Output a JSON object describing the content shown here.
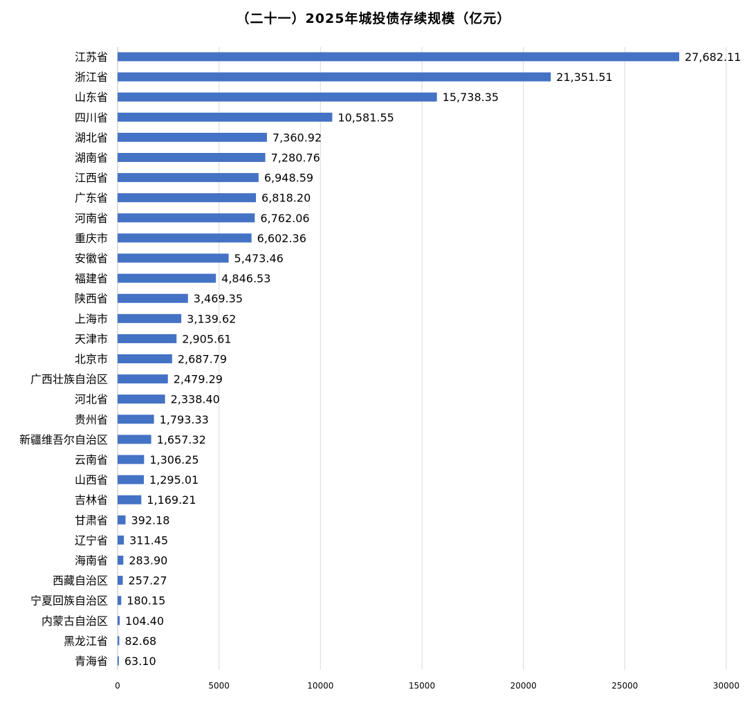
{
  "chart_data": {
    "type": "bar",
    "orientation": "horizontal",
    "title": "（二十一）2025年城投债存续规模（亿元）",
    "xlabel": "",
    "ylabel": "",
    "xlim": [
      0,
      30000
    ],
    "x_ticks": [
      "0",
      "5000",
      "10000",
      "15000",
      "20000",
      "25000",
      "30000"
    ],
    "grid": true,
    "legend": "none",
    "bar_color": "#4472C4",
    "categories": [
      "江苏省",
      "浙江省",
      "山东省",
      "四川省",
      "湖北省",
      "湖南省",
      "江西省",
      "广东省",
      "河南省",
      "重庆市",
      "安徽省",
      "福建省",
      "陕西省",
      "上海市",
      "天津市",
      "北京市",
      "广西壮族自治区",
      "河北省",
      "贵州省",
      "新疆维吾尔自治区",
      "云南省",
      "山西省",
      "吉林省",
      "甘肃省",
      "辽宁省",
      "海南省",
      "西藏自治区",
      "宁夏回族自治区",
      "内蒙古自治区",
      "黑龙江省",
      "青海省"
    ],
    "values": [
      27682.11,
      21351.51,
      15738.35,
      10581.55,
      7360.92,
      7280.76,
      6948.59,
      6818.2,
      6762.06,
      6602.36,
      5473.46,
      4846.53,
      3469.35,
      3139.62,
      2905.61,
      2687.79,
      2479.29,
      2338.4,
      1793.33,
      1657.32,
      1306.25,
      1295.01,
      1169.21,
      392.18,
      311.45,
      283.9,
      257.27,
      180.15,
      104.4,
      82.68,
      63.1
    ],
    "value_labels": [
      "27,682.11",
      "21,351.51",
      "15,738.35",
      "10,581.55",
      "7,360.92",
      "7,280.76",
      "6,948.59",
      "6,818.20",
      "6,762.06",
      "6,602.36",
      "5,473.46",
      "4,846.53",
      "3,469.35",
      "3,139.62",
      "2,905.61",
      "2,687.79",
      "2,479.29",
      "2,338.40",
      "1,793.33",
      "1,657.32",
      "1,306.25",
      "1,295.01",
      "1,169.21",
      "392.18",
      "311.45",
      "283.90",
      "257.27",
      "180.15",
      "104.40",
      "82.68",
      "63.10"
    ]
  }
}
